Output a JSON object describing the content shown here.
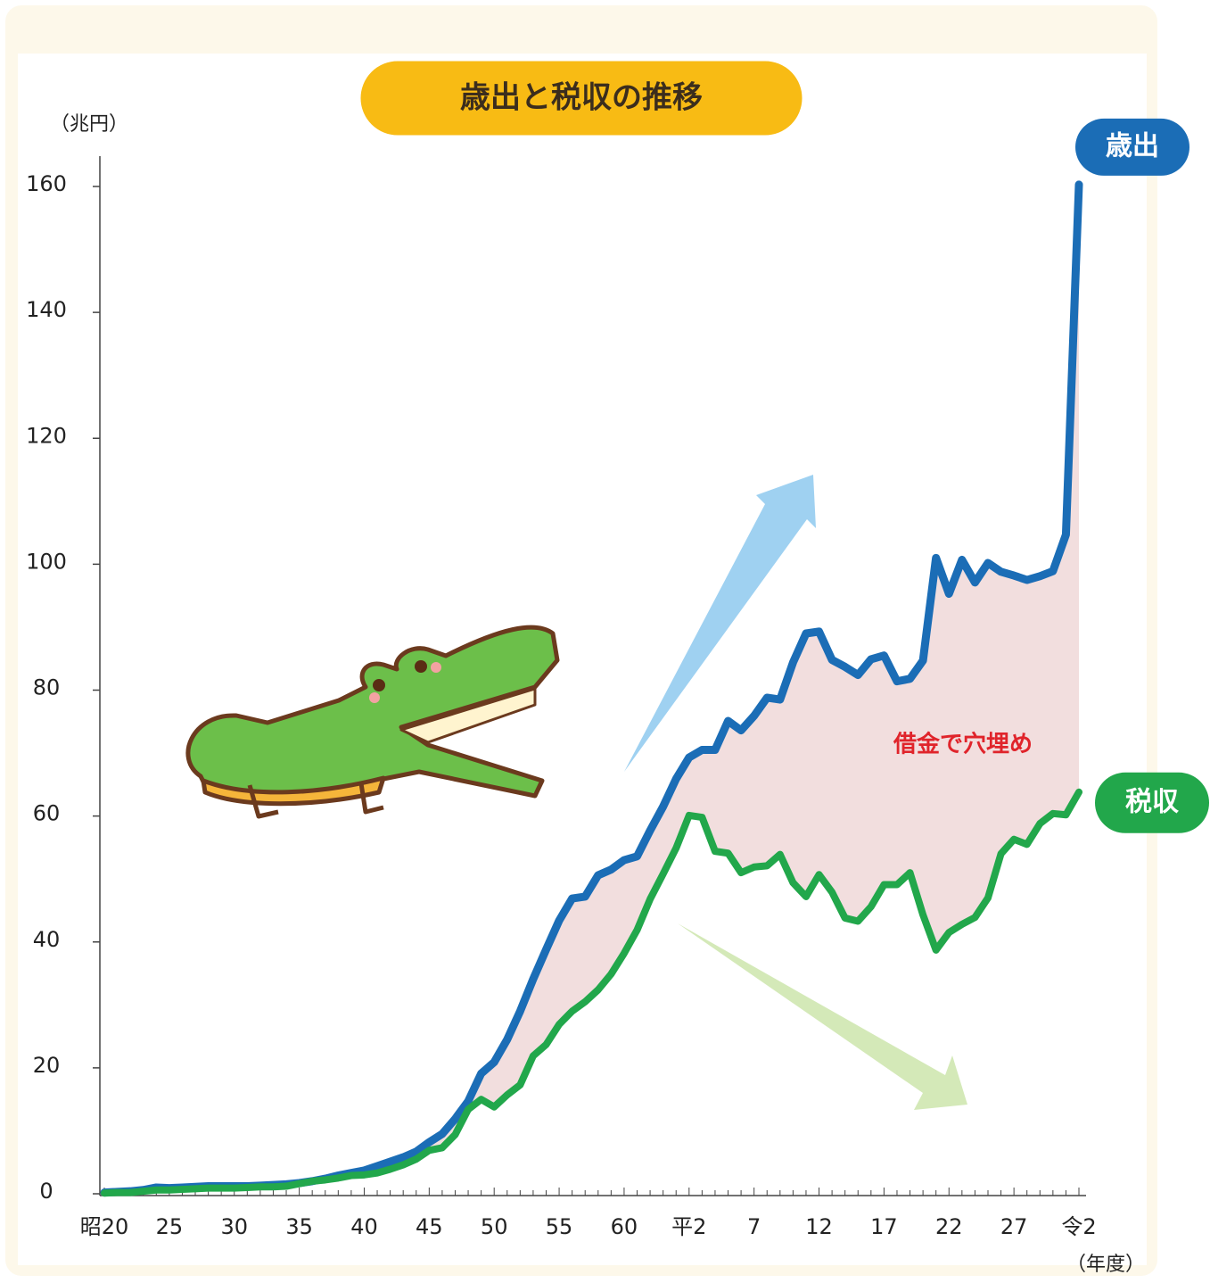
{
  "chart_data": {
    "type": "line",
    "title": "歳出と税収の推移",
    "y_label": "（兆円）",
    "x_label": "（年度）",
    "annotation": "借金で穴埋め",
    "categories": [
      "昭20",
      null,
      null,
      null,
      null,
      "25",
      null,
      null,
      null,
      null,
      "30",
      null,
      null,
      null,
      null,
      "35",
      null,
      null,
      null,
      null,
      "40",
      null,
      null,
      null,
      null,
      "45",
      null,
      null,
      null,
      null,
      "50",
      null,
      null,
      null,
      null,
      "55",
      null,
      null,
      null,
      null,
      "60",
      null,
      null,
      null,
      null,
      "平2",
      null,
      null,
      null,
      null,
      "7",
      null,
      null,
      null,
      null,
      "12",
      null,
      null,
      null,
      null,
      "17",
      null,
      null,
      null,
      null,
      "22",
      null,
      null,
      null,
      null,
      "27",
      null,
      null,
      null,
      null,
      "令2"
    ],
    "series": [
      {
        "name": "歳出",
        "color": "#1b6db6",
        "values": [
          0.2,
          0.3,
          0.4,
          0.6,
          1.0,
          0.9,
          1.0,
          1.1,
          1.2,
          1.2,
          1.2,
          1.2,
          1.3,
          1.4,
          1.5,
          1.7,
          2.0,
          2.4,
          2.9,
          3.3,
          3.7,
          4.4,
          5.1,
          5.8,
          6.7,
          8.2,
          9.5,
          11.9,
          14.7,
          19.1,
          20.9,
          24.5,
          29.0,
          34.1,
          38.8,
          43.4,
          46.9,
          47.2,
          50.6,
          51.5,
          53.0,
          53.6,
          57.7,
          61.5,
          65.9,
          69.3,
          70.5,
          70.5,
          75.1,
          73.6,
          75.9,
          78.8,
          78.5,
          84.4,
          89.0,
          89.3,
          84.8,
          83.7,
          82.4,
          84.9,
          85.5,
          81.4,
          81.8,
          84.7,
          101.0,
          95.3,
          100.7,
          97.1,
          100.2,
          98.8,
          98.2,
          97.5,
          98.1,
          98.9,
          104.7,
          160.3
        ]
      },
      {
        "name": "税収",
        "color": "#22a74b",
        "values": [
          0.1,
          0.2,
          0.2,
          0.4,
          0.6,
          0.6,
          0.7,
          0.8,
          0.9,
          0.9,
          0.9,
          1.0,
          1.1,
          1.1,
          1.2,
          1.6,
          2.0,
          2.2,
          2.5,
          2.9,
          3.0,
          3.3,
          3.9,
          4.6,
          5.5,
          6.9,
          7.3,
          9.4,
          13.4,
          15.0,
          13.8,
          15.7,
          17.3,
          21.9,
          23.7,
          26.9,
          29.0,
          30.5,
          32.4,
          34.9,
          38.2,
          41.9,
          46.8,
          50.8,
          54.9,
          60.1,
          59.8,
          54.4,
          54.1,
          51.0,
          51.9,
          52.1,
          53.9,
          49.4,
          47.2,
          50.7,
          47.9,
          43.8,
          43.3,
          45.6,
          49.1,
          49.1,
          51.0,
          44.3,
          38.7,
          41.5,
          42.8,
          43.9,
          47.0,
          54.0,
          56.3,
          55.5,
          58.8,
          60.4,
          60.2,
          63.8
        ]
      }
    ],
    "ylim": [
      0,
      160
    ],
    "yticks": [
      0,
      20,
      40,
      60,
      80,
      100,
      120,
      140,
      160
    ],
    "fill_between": "#f2dede"
  }
}
